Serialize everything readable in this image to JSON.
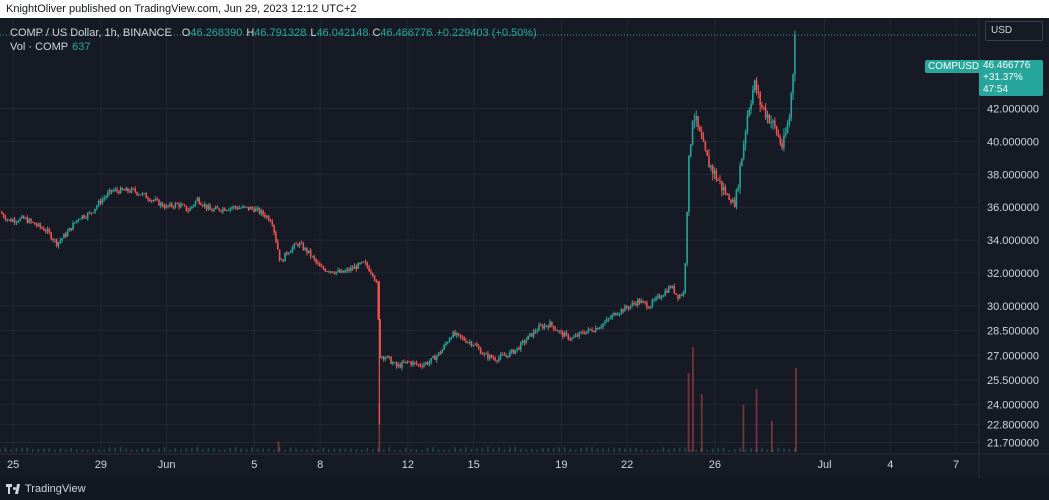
{
  "header": {
    "publisher_line": "KnightOliver published on TradingView.com, Jun 29, 2023 12:12 UTC+2"
  },
  "legend": {
    "symbol": "COMP / US Dollar, 1h, BINANCE",
    "o_label": "O",
    "o_value": "46.268390",
    "h_label": "H",
    "h_value": "46.791328",
    "l_label": "L",
    "l_value": "46.042148",
    "c_label": "C",
    "c_value": "46.466776",
    "change": "+0.229403 (+0.50%)",
    "vol_label": "Vol · COMP",
    "vol_value": "637"
  },
  "currency": "USD",
  "last_price_tag": {
    "symbol": "COMPUSD",
    "price": "46.466776",
    "change_pct": "+31.37%",
    "countdown": "47:54"
  },
  "footer": {
    "brand": "TradingView"
  },
  "colors": {
    "up": "#26a69a",
    "down": "#ef5350",
    "background": "#161a25",
    "grid": "#232733",
    "text": "#d1d4dc"
  },
  "chart_data": {
    "type": "candlestick",
    "symbol": "COMPUSD",
    "interval": "1h",
    "ylim": [
      21.0,
      47.5
    ],
    "y_ticks": [
      "42.000000",
      "40.000000",
      "38.000000",
      "36.000000",
      "34.000000",
      "32.000000",
      "30.000000",
      "28.500000",
      "27.000000",
      "25.500000",
      "24.000000",
      "22.800000",
      "21.700000"
    ],
    "y_tick_values": [
      42.0,
      40.0,
      38.0,
      36.0,
      34.0,
      32.0,
      30.0,
      28.5,
      27.0,
      25.5,
      24.0,
      22.8,
      21.7
    ],
    "x_ticks": [
      {
        "label": "25",
        "day": -7
      },
      {
        "label": "29",
        "day": -3
      },
      {
        "label": "Jun",
        "day": 0
      },
      {
        "label": "5",
        "day": 4
      },
      {
        "label": "8",
        "day": 7
      },
      {
        "label": "12",
        "day": 11
      },
      {
        "label": "15",
        "day": 14
      },
      {
        "label": "19",
        "day": 18
      },
      {
        "label": "22",
        "day": 21
      },
      {
        "label": "26",
        "day": 25
      },
      {
        "label": "Jul",
        "day": 30
      },
      {
        "label": "4",
        "day": 33
      },
      {
        "label": "7",
        "day": 36
      }
    ],
    "x_range_days": [
      -7.6,
      37.0
    ],
    "last_price": 46.466776,
    "close_path": [
      {
        "day": -7.6,
        "close": 35.7
      },
      {
        "day": -7.2,
        "close": 35.2
      },
      {
        "day": -6.5,
        "close": 35.3
      },
      {
        "day": -5.5,
        "close": 34.6
      },
      {
        "day": -5.0,
        "close": 33.8
      },
      {
        "day": -4.5,
        "close": 34.5
      },
      {
        "day": -4.0,
        "close": 35.4
      },
      {
        "day": -3.5,
        "close": 35.6
      },
      {
        "day": -3.0,
        "close": 36.4
      },
      {
        "day": -2.5,
        "close": 37.0
      },
      {
        "day": -1.5,
        "close": 37.0
      },
      {
        "day": -1.0,
        "close": 36.7
      },
      {
        "day": 0.0,
        "close": 36.0
      },
      {
        "day": 0.5,
        "close": 36.2
      },
      {
        "day": 1.0,
        "close": 35.8
      },
      {
        "day": 1.4,
        "close": 36.5
      },
      {
        "day": 2.0,
        "close": 35.8
      },
      {
        "day": 3.0,
        "close": 36.0
      },
      {
        "day": 4.0,
        "close": 35.9
      },
      {
        "day": 4.5,
        "close": 35.5
      },
      {
        "day": 4.8,
        "close": 35.2
      },
      {
        "day": 5.2,
        "close": 32.6
      },
      {
        "day": 5.5,
        "close": 33.3
      },
      {
        "day": 6.0,
        "close": 33.8
      },
      {
        "day": 6.5,
        "close": 33.2
      },
      {
        "day": 7.0,
        "close": 32.3
      },
      {
        "day": 8.0,
        "close": 32.0
      },
      {
        "day": 9.0,
        "close": 32.6
      },
      {
        "day": 9.4,
        "close": 32.0
      },
      {
        "day": 9.6,
        "close": 31.2
      },
      {
        "day": 9.7,
        "close": 27.0
      },
      {
        "day": 10.0,
        "close": 26.9
      },
      {
        "day": 10.5,
        "close": 26.3
      },
      {
        "day": 11.0,
        "close": 26.6
      },
      {
        "day": 11.5,
        "close": 26.4
      },
      {
        "day": 12.0,
        "close": 26.6
      },
      {
        "day": 12.5,
        "close": 27.2
      },
      {
        "day": 13.0,
        "close": 28.3
      },
      {
        "day": 13.5,
        "close": 28.0
      },
      {
        "day": 14.0,
        "close": 27.7
      },
      {
        "day": 14.5,
        "close": 27.0
      },
      {
        "day": 15.0,
        "close": 26.8
      },
      {
        "day": 15.5,
        "close": 27.0
      },
      {
        "day": 16.0,
        "close": 27.4
      },
      {
        "day": 16.5,
        "close": 28.1
      },
      {
        "day": 17.0,
        "close": 28.7
      },
      {
        "day": 17.5,
        "close": 28.9
      },
      {
        "day": 18.0,
        "close": 28.3
      },
      {
        "day": 18.5,
        "close": 28.0
      },
      {
        "day": 19.0,
        "close": 28.4
      },
      {
        "day": 19.5,
        "close": 28.6
      },
      {
        "day": 20.0,
        "close": 29.0
      },
      {
        "day": 20.5,
        "close": 29.6
      },
      {
        "day": 21.0,
        "close": 29.9
      },
      {
        "day": 21.5,
        "close": 30.3
      },
      {
        "day": 22.0,
        "close": 30.0
      },
      {
        "day": 22.5,
        "close": 30.6
      },
      {
        "day": 23.0,
        "close": 31.2
      },
      {
        "day": 23.3,
        "close": 30.6
      },
      {
        "day": 23.6,
        "close": 30.8
      },
      {
        "day": 23.8,
        "close": 38.4
      },
      {
        "day": 24.0,
        "close": 41.8
      },
      {
        "day": 24.3,
        "close": 40.4
      },
      {
        "day": 24.6,
        "close": 39.0
      },
      {
        "day": 25.0,
        "close": 38.0
      },
      {
        "day": 25.5,
        "close": 36.8
      },
      {
        "day": 25.9,
        "close": 36.2
      },
      {
        "day": 26.2,
        "close": 38.8
      },
      {
        "day": 26.5,
        "close": 41.8
      },
      {
        "day": 26.8,
        "close": 43.5
      },
      {
        "day": 27.1,
        "close": 42.2
      },
      {
        "day": 27.5,
        "close": 41.4
      },
      {
        "day": 27.8,
        "close": 40.6
      },
      {
        "day": 28.1,
        "close": 39.6
      },
      {
        "day": 28.4,
        "close": 41.5
      },
      {
        "day": 28.7,
        "close": 46.466776
      }
    ],
    "volume_spikes": [
      {
        "day": 5.1,
        "rel": 0.1
      },
      {
        "day": 9.7,
        "rel": 0.45
      },
      {
        "day": 23.8,
        "rel": 0.75
      },
      {
        "day": 24.0,
        "rel": 1.0
      },
      {
        "day": 24.4,
        "rel": 0.55
      },
      {
        "day": 26.3,
        "rel": 0.45
      },
      {
        "day": 26.9,
        "rel": 0.6
      },
      {
        "day": 27.6,
        "rel": 0.3
      },
      {
        "day": 28.7,
        "rel": 0.8
      }
    ],
    "grid": true
  }
}
